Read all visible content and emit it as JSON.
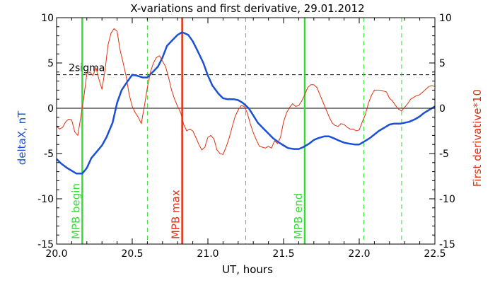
{
  "chart_data": {
    "type": "line",
    "title": "X-variations and first derivative, 29.01.2012",
    "xlabel": "UT, hours",
    "ylabel_left": "deltaX, nT",
    "ylabel_right": "First derivative*10",
    "xlim": [
      20.0,
      22.5
    ],
    "ylim": [
      -15,
      10
    ],
    "x_ticks": [
      20.0,
      20.5,
      21.0,
      21.5,
      22.0,
      22.5
    ],
    "x_tick_labels": [
      "20.0",
      "20.5",
      "21.0",
      "21.5",
      "22.0",
      "22.5"
    ],
    "y_ticks": [
      10,
      5,
      0,
      -5,
      -10,
      -15
    ],
    "y_tick_labels": [
      "10",
      "5",
      "0",
      "-5",
      "-10",
      "-15"
    ],
    "grid": false,
    "colors": {
      "deltaX": "#1a4fd6",
      "derivative": "#e03010",
      "mpb_green": "#33dd33",
      "mpb_max": "#e03010",
      "reference": "#000000"
    },
    "series": [
      {
        "id": "deltaX",
        "axis": "left",
        "x": [
          20.0,
          20.03,
          20.07,
          20.1,
          20.13,
          20.17,
          20.2,
          20.23,
          20.27,
          20.3,
          20.33,
          20.37,
          20.4,
          20.43,
          20.47,
          20.5,
          20.53,
          20.57,
          20.6,
          20.63,
          20.67,
          20.7,
          20.73,
          20.77,
          20.8,
          20.83,
          20.87,
          20.9,
          20.93,
          20.97,
          21.0,
          21.03,
          21.07,
          21.1,
          21.13,
          21.17,
          21.2,
          21.23,
          21.27,
          21.3,
          21.33,
          21.37,
          21.4,
          21.43,
          21.47,
          21.5,
          21.53,
          21.57,
          21.6,
          21.63,
          21.67,
          21.7,
          21.73,
          21.77,
          21.8,
          21.83,
          21.87,
          21.9,
          21.93,
          21.97,
          22.0,
          22.03,
          22.07,
          22.1,
          22.13,
          22.17,
          22.2,
          22.23,
          22.27,
          22.3,
          22.33,
          22.37,
          22.4,
          22.43,
          22.47,
          22.5
        ],
        "y": [
          -5.6,
          -6.1,
          -6.6,
          -6.9,
          -7.2,
          -7.2,
          -6.6,
          -5.5,
          -4.7,
          -4.1,
          -3.2,
          -1.6,
          0.6,
          2.0,
          3.0,
          3.7,
          3.6,
          3.4,
          3.4,
          3.9,
          4.6,
          5.6,
          6.9,
          7.6,
          8.1,
          8.4,
          8.1,
          7.4,
          6.4,
          5.0,
          3.6,
          2.5,
          1.6,
          1.1,
          1.0,
          1.0,
          0.9,
          0.6,
          0.0,
          -0.8,
          -1.6,
          -2.3,
          -2.8,
          -3.3,
          -3.8,
          -4.1,
          -4.4,
          -4.5,
          -4.5,
          -4.3,
          -3.9,
          -3.5,
          -3.3,
          -3.1,
          -3.1,
          -3.3,
          -3.6,
          -3.8,
          -3.9,
          -4.0,
          -4.0,
          -3.7,
          -3.3,
          -2.9,
          -2.5,
          -2.1,
          -1.8,
          -1.7,
          -1.7,
          -1.6,
          -1.5,
          -1.2,
          -0.9,
          -0.5,
          -0.1,
          0.2
        ]
      },
      {
        "id": "derivative",
        "axis": "right",
        "x": [
          20.0,
          20.02,
          20.04,
          20.06,
          20.08,
          20.1,
          20.12,
          20.14,
          20.16,
          20.18,
          20.2,
          20.22,
          20.24,
          20.26,
          20.28,
          20.3,
          20.32,
          20.34,
          20.36,
          20.38,
          20.4,
          20.42,
          20.44,
          20.46,
          20.48,
          20.5,
          20.52,
          20.54,
          20.56,
          20.58,
          20.6,
          20.62,
          20.64,
          20.66,
          20.68,
          20.7,
          20.72,
          20.74,
          20.76,
          20.78,
          20.8,
          20.82,
          20.84,
          20.86,
          20.88,
          20.9,
          20.92,
          20.94,
          20.96,
          20.98,
          21.0,
          21.02,
          21.04,
          21.06,
          21.08,
          21.1,
          21.12,
          21.14,
          21.16,
          21.18,
          21.2,
          21.22,
          21.24,
          21.26,
          21.28,
          21.3,
          21.32,
          21.34,
          21.36,
          21.38,
          21.4,
          21.42,
          21.44,
          21.46,
          21.48,
          21.5,
          21.52,
          21.54,
          21.56,
          21.58,
          21.6,
          21.62,
          21.64,
          21.66,
          21.68,
          21.7,
          21.72,
          21.74,
          21.76,
          21.78,
          21.8,
          21.82,
          21.84,
          21.86,
          21.88,
          21.9,
          21.92,
          21.94,
          21.96,
          21.98,
          22.0,
          22.02,
          22.04,
          22.06,
          22.08,
          22.1,
          22.12,
          22.14,
          22.16,
          22.18,
          22.2,
          22.22,
          22.24,
          22.26,
          22.28,
          22.3,
          22.32,
          22.34,
          22.36,
          22.38,
          22.4,
          22.42,
          22.44,
          22.46,
          22.48,
          22.5
        ],
        "y": [
          -2.0,
          -2.3,
          -2.1,
          -1.5,
          -1.2,
          -1.3,
          -2.6,
          -3.0,
          -1.0,
          1.2,
          3.8,
          4.0,
          3.6,
          4.5,
          3.2,
          2.1,
          4.2,
          7.0,
          8.3,
          8.8,
          8.5,
          6.4,
          5.0,
          3.5,
          1.5,
          0.2,
          -0.5,
          -1.0,
          -1.7,
          0.2,
          2.3,
          4.0,
          5.0,
          5.6,
          5.8,
          5.2,
          4.6,
          3.4,
          2.0,
          1.0,
          0.2,
          -0.5,
          -1.8,
          -2.5,
          -2.3,
          -2.5,
          -3.2,
          -4.0,
          -4.6,
          -4.3,
          -3.2,
          -3.0,
          -3.4,
          -4.6,
          -5.0,
          -5.1,
          -4.3,
          -3.3,
          -2.1,
          -0.9,
          -0.2,
          0.3,
          0.2,
          -0.5,
          -1.7,
          -2.7,
          -3.5,
          -4.2,
          -4.3,
          -4.4,
          -4.2,
          -4.4,
          -3.6,
          -3.9,
          -3.2,
          -1.5,
          -0.5,
          0.1,
          0.5,
          0.2,
          0.3,
          0.8,
          1.5,
          2.3,
          2.6,
          2.6,
          2.3,
          1.5,
          0.7,
          -0.1,
          -0.9,
          -1.6,
          -1.9,
          -2.0,
          -1.7,
          -1.8,
          -2.1,
          -2.3,
          -2.3,
          -2.5,
          -2.4,
          -1.5,
          -0.7,
          0.5,
          1.4,
          2.0,
          2.0,
          2.0,
          1.9,
          1.8,
          1.1,
          0.8,
          0.3,
          -0.1,
          -0.3,
          0.1,
          0.5,
          1.0,
          1.2,
          1.4,
          1.5,
          1.8,
          2.1,
          2.4,
          2.5,
          2.4
        ]
      }
    ],
    "reference_lines": {
      "zero": 0,
      "two_sigma": 3.7,
      "two_sigma_label": "2sigma"
    },
    "vertical_lines": [
      {
        "x": 20.17,
        "style": "solid",
        "color": "#33dd33",
        "label": "MPB begin"
      },
      {
        "x": 20.6,
        "style": "dashed",
        "color": "#33dd33",
        "label": ""
      },
      {
        "x": 20.83,
        "style": "solid",
        "color": "#e03010",
        "label": "MPB max"
      },
      {
        "x": 21.25,
        "style": "dashed",
        "color": "#33dd33",
        "label": ""
      },
      {
        "x": 21.64,
        "style": "solid",
        "color": "#33dd33",
        "label": "MPB end"
      },
      {
        "x": 22.03,
        "style": "dashed",
        "color": "#33dd33",
        "label": ""
      },
      {
        "x": 22.28,
        "style": "dashed",
        "color": "#33dd33",
        "label": ""
      }
    ]
  }
}
